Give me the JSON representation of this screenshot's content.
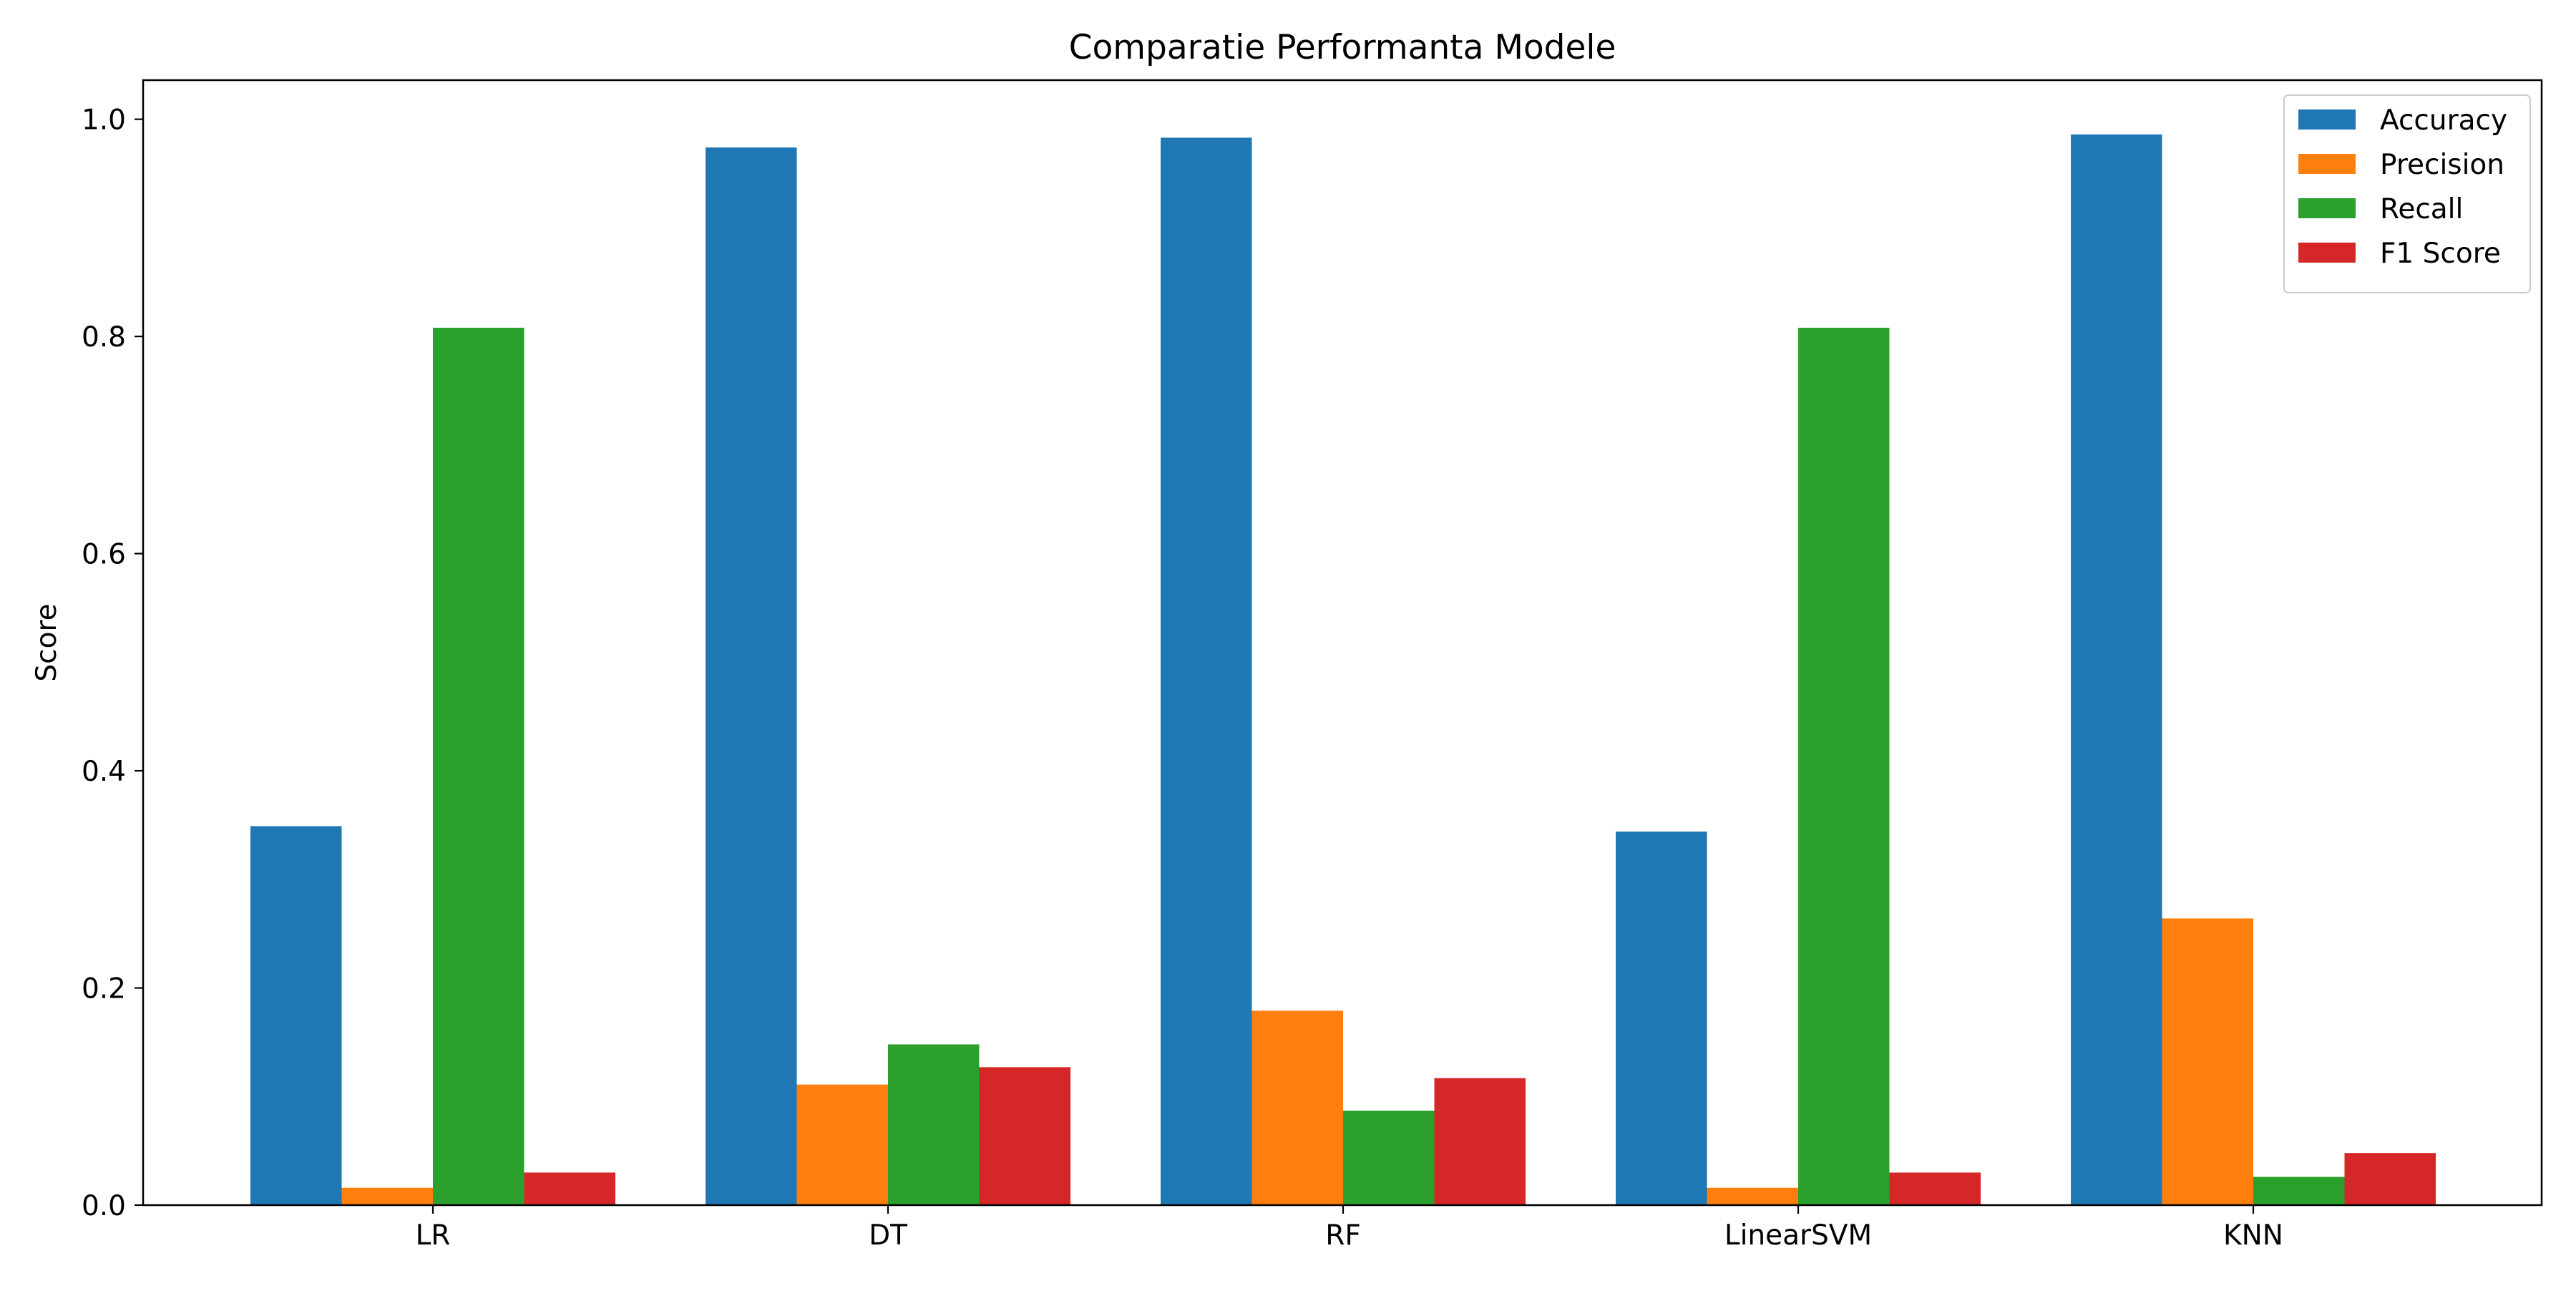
{
  "chart_data": {
    "type": "bar",
    "title": "Comparatie Performanta Modele",
    "xlabel": "",
    "ylabel": "Score",
    "categories": [
      "LR",
      "DT",
      "RF",
      "LinearSVM",
      "KNN"
    ],
    "series": [
      {
        "name": "Accuracy",
        "color": "#1f77b4",
        "values": [
          0.349,
          0.974,
          0.983,
          0.344,
          0.986
        ]
      },
      {
        "name": "Precision",
        "color": "#ff7f0e",
        "values": [
          0.016,
          0.111,
          0.179,
          0.016,
          0.264
        ]
      },
      {
        "name": "Recall",
        "color": "#2ca02c",
        "values": [
          0.808,
          0.148,
          0.087,
          0.808,
          0.026
        ]
      },
      {
        "name": "F1 Score",
        "color": "#d62728",
        "values": [
          0.03,
          0.127,
          0.117,
          0.03,
          0.048
        ]
      }
    ],
    "ylim": [
      0,
      1.036
    ],
    "yticks": [
      0.0,
      0.2,
      0.4,
      0.6,
      0.8,
      1.0
    ],
    "ytick_labels": [
      "0.0",
      "0.2",
      "0.4",
      "0.6",
      "0.8",
      "1.0"
    ],
    "grid": false,
    "legend_position": "top-right"
  }
}
